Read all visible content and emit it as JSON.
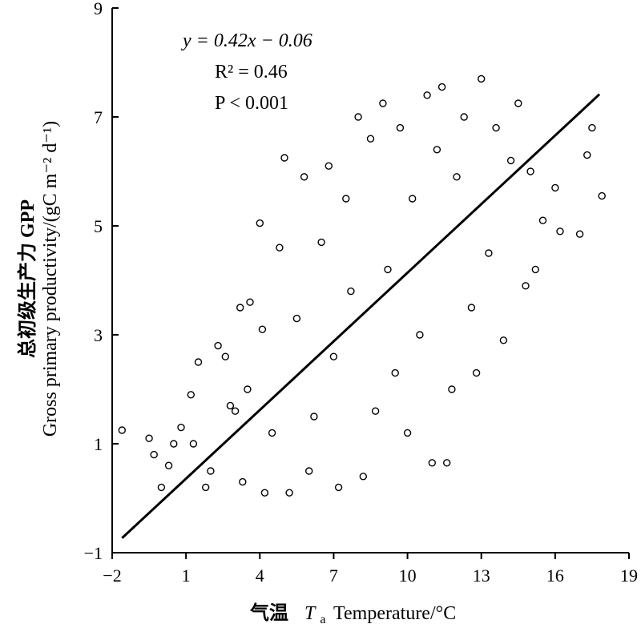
{
  "chart_data": {
    "type": "scatter",
    "title": "",
    "xlabel": {
      "cn": "气温",
      "symbol": "T",
      "subscript": "a",
      "en": "Temperature/°C"
    },
    "ylabel": {
      "cn": "总初级生产力 GPP",
      "en": "Gross primary productivity/(gC m⁻² d⁻¹)"
    },
    "xlim": [
      -2,
      19
    ],
    "ylim": [
      -1,
      9
    ],
    "xticks": [
      -2,
      1,
      4,
      7,
      10,
      13,
      16,
      19
    ],
    "yticks": [
      -1,
      1,
      3,
      5,
      7,
      9
    ],
    "xtick_labels": [
      "−2",
      "1",
      "4",
      "7",
      "10",
      "13",
      "16",
      "19"
    ],
    "ytick_labels": [
      "−1",
      "1",
      "3",
      "5",
      "7",
      "9"
    ],
    "annotation": {
      "equation": "y = 0.42x − 0.06",
      "r2": "R² = 0.46",
      "p": "P < 0.001"
    },
    "regression": {
      "slope": 0.42,
      "intercept": -0.06,
      "x_range": [
        -1.6,
        17.8
      ]
    },
    "marker": "open-circle",
    "grid": false,
    "points": [
      [
        -1.6,
        1.25
      ],
      [
        -0.5,
        1.1
      ],
      [
        -0.3,
        0.8
      ],
      [
        0.0,
        0.2
      ],
      [
        0.3,
        0.6
      ],
      [
        0.5,
        1.0
      ],
      [
        0.8,
        1.3
      ],
      [
        1.2,
        1.9
      ],
      [
        1.3,
        1.0
      ],
      [
        1.5,
        2.5
      ],
      [
        1.8,
        0.2
      ],
      [
        2.0,
        0.5
      ],
      [
        2.3,
        2.8
      ],
      [
        2.6,
        2.6
      ],
      [
        2.8,
        1.7
      ],
      [
        3.0,
        1.6
      ],
      [
        3.2,
        3.5
      ],
      [
        3.3,
        0.3
      ],
      [
        3.5,
        2.0
      ],
      [
        3.6,
        3.6
      ],
      [
        4.0,
        5.05
      ],
      [
        4.1,
        3.1
      ],
      [
        4.2,
        0.1
      ],
      [
        4.5,
        1.2
      ],
      [
        4.8,
        4.6
      ],
      [
        5.0,
        6.25
      ],
      [
        5.2,
        0.1
      ],
      [
        5.5,
        3.3
      ],
      [
        5.8,
        5.9
      ],
      [
        6.0,
        0.5
      ],
      [
        6.2,
        1.5
      ],
      [
        6.5,
        4.7
      ],
      [
        6.8,
        6.1
      ],
      [
        7.0,
        2.6
      ],
      [
        7.2,
        0.2
      ],
      [
        7.5,
        5.5
      ],
      [
        7.7,
        3.8
      ],
      [
        8.0,
        7.0
      ],
      [
        8.2,
        0.4
      ],
      [
        8.5,
        6.6
      ],
      [
        8.7,
        1.6
      ],
      [
        9.0,
        7.25
      ],
      [
        9.2,
        4.2
      ],
      [
        9.5,
        2.3
      ],
      [
        9.7,
        6.8
      ],
      [
        10.0,
        1.2
      ],
      [
        10.2,
        5.5
      ],
      [
        10.5,
        3.0
      ],
      [
        10.8,
        7.4
      ],
      [
        11.0,
        0.65
      ],
      [
        11.2,
        6.4
      ],
      [
        11.4,
        7.55
      ],
      [
        11.6,
        0.65
      ],
      [
        11.8,
        2.0
      ],
      [
        12.0,
        5.9
      ],
      [
        12.3,
        7.0
      ],
      [
        12.6,
        3.5
      ],
      [
        12.8,
        2.3
      ],
      [
        13.0,
        7.7
      ],
      [
        13.3,
        4.5
      ],
      [
        13.6,
        6.8
      ],
      [
        13.9,
        2.9
      ],
      [
        14.2,
        6.2
      ],
      [
        14.5,
        7.25
      ],
      [
        14.8,
        3.9
      ],
      [
        15.0,
        6.0
      ],
      [
        15.2,
        4.2
      ],
      [
        15.5,
        5.1
      ],
      [
        16.0,
        5.7
      ],
      [
        16.2,
        4.9
      ],
      [
        17.0,
        4.85
      ],
      [
        17.3,
        6.3
      ],
      [
        17.5,
        6.8
      ],
      [
        17.9,
        5.55
      ]
    ]
  }
}
